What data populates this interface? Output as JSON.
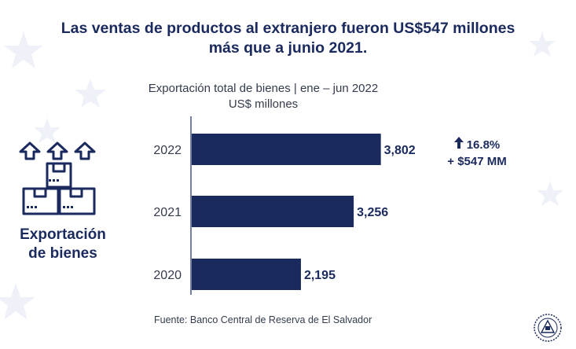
{
  "headline": {
    "line1": "Las ventas de productos  al extranjero fueron US$547 millones",
    "line2": "más que a junio 2021."
  },
  "chart_data": {
    "type": "bar",
    "orientation": "horizontal",
    "title": "Exportación total de bienes | ene – jun 2022",
    "subtitle": "US$ millones",
    "categories": [
      "2022",
      "2021",
      "2020"
    ],
    "values": [
      3802,
      3256,
      2195
    ],
    "value_labels": [
      "3,802",
      "3,256",
      "2,195"
    ],
    "xlim": [
      0,
      4000
    ],
    "grid": false,
    "bar_color": "#1b2a5e"
  },
  "callout": {
    "arrow_icon": "arrow-up-icon",
    "change": "16.8%",
    "difference": "+ $547 MM"
  },
  "side": {
    "icon": "boxes-export-icon",
    "label_line1": "Exportación",
    "label_line2": "de bienes"
  },
  "source": "Fuente: Banco Central de Reserva de El Salvador",
  "colors": {
    "navy": "#1b2a5e",
    "text_gray": "#333b4c",
    "axis": "#1b2a5e",
    "background_stars": "#eef1f7"
  }
}
